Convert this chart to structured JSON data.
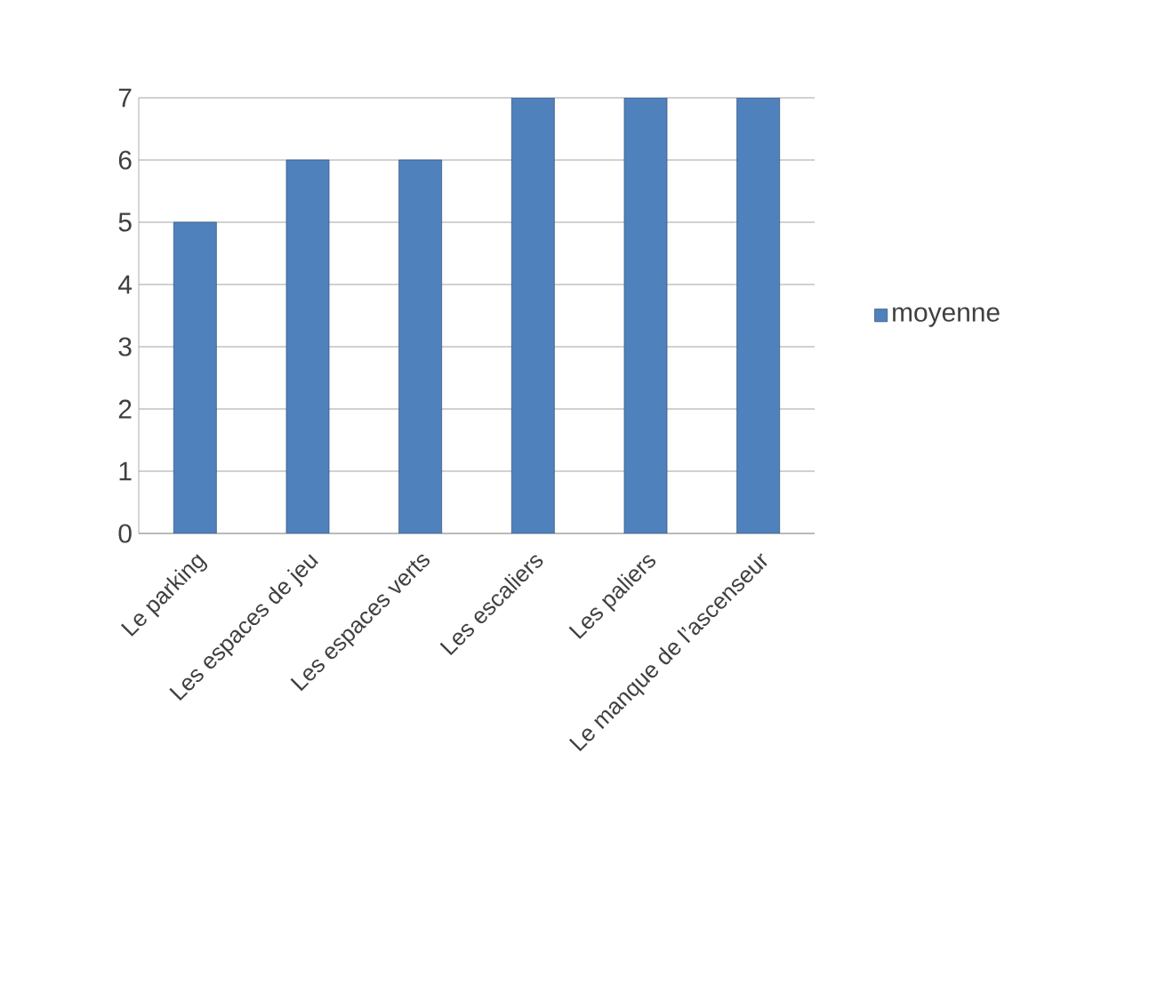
{
  "chart_data": {
    "type": "bar",
    "categories": [
      "Le parking",
      "Les espaces de jeu",
      "Les espaces verts",
      "Les escaliers",
      "Les paliers",
      "Le manque de l’ascenseur"
    ],
    "series": [
      {
        "name": "moyenne",
        "color": "#4f81bd",
        "values": [
          5,
          6,
          6,
          7,
          7,
          7
        ]
      }
    ],
    "ylim": [
      0,
      7
    ],
    "yticks": [
      0,
      1,
      2,
      3,
      4,
      5,
      6,
      7
    ],
    "grid": "y",
    "legend": "right"
  }
}
